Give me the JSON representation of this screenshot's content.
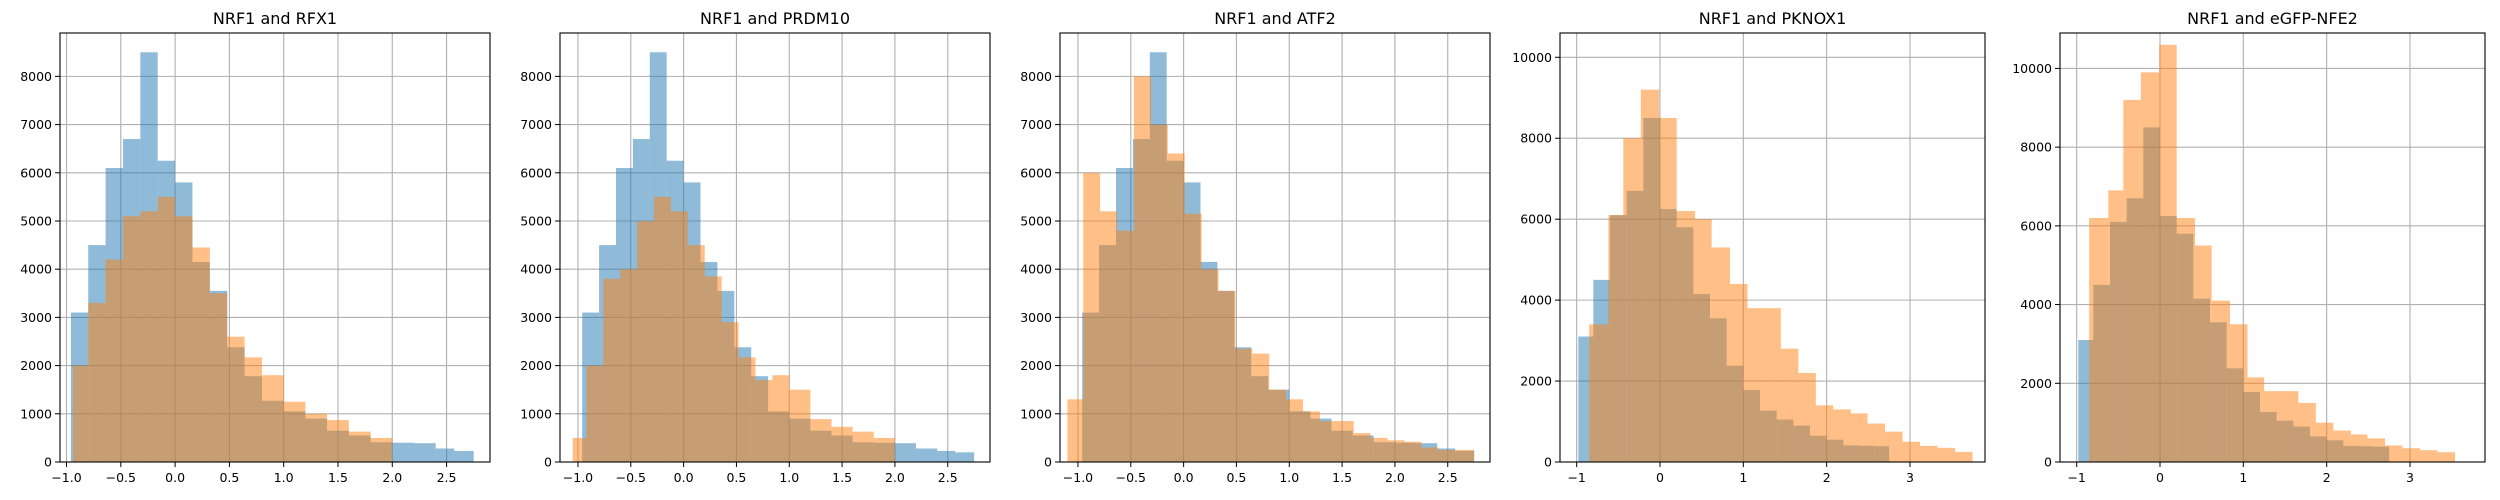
{
  "colors": {
    "series_a": "#1f77b4",
    "series_b": "#ff7f0e",
    "alpha": 0.5,
    "grid": "#b0b0b0"
  },
  "chart_data": [
    {
      "type": "bar",
      "title": "NRF1 and RFX1",
      "xlabel": "",
      "ylabel": "",
      "xlim": [
        -1.06,
        2.9
      ],
      "ylim": [
        0,
        8900
      ],
      "xticks": [
        -1.0,
        -0.5,
        0.0,
        0.5,
        1.0,
        1.5,
        2.0,
        2.5
      ],
      "xtick_labels": [
        "−1.0",
        "−0.5",
        "0.0",
        "0.5",
        "1.0",
        "1.5",
        "2.0",
        "2.5"
      ],
      "yticks": [
        0,
        1000,
        2000,
        3000,
        4000,
        5000,
        6000,
        7000,
        8000
      ],
      "grid": true,
      "series": [
        {
          "edges": [
            -0.96,
            -0.8,
            -0.64,
            -0.48,
            -0.32,
            -0.16,
            0.0,
            0.16,
            0.32,
            0.48,
            0.64,
            0.8,
            1.0,
            1.2,
            1.4,
            1.6,
            1.8,
            2.0,
            2.2,
            2.4,
            2.57,
            2.75
          ],
          "values": [
            3100,
            4500,
            6100,
            6700,
            8500,
            6250,
            5800,
            4150,
            3550,
            2380,
            1780,
            1270,
            1050,
            900,
            650,
            550,
            410,
            400,
            390,
            280,
            230
          ]
        },
        {
          "edges": [
            -0.94,
            -0.8,
            -0.64,
            -0.48,
            -0.32,
            -0.16,
            0.0,
            0.16,
            0.32,
            0.48,
            0.64,
            0.8,
            1.0,
            1.2,
            1.4,
            1.6,
            1.8,
            2.0
          ],
          "values": [
            2000,
            3300,
            4200,
            5100,
            5200,
            5500,
            5100,
            4450,
            3500,
            2600,
            2170,
            1800,
            1250,
            1000,
            870,
            630,
            500
          ]
        }
      ]
    },
    {
      "type": "bar",
      "title": "NRF1 and PRDM10",
      "xlabel": "",
      "ylabel": "",
      "xlim": [
        -1.17,
        2.9
      ],
      "ylim": [
        0,
        8900
      ],
      "xticks": [
        -1.0,
        -0.5,
        0.0,
        0.5,
        1.0,
        1.5,
        2.0,
        2.5
      ],
      "xtick_labels": [
        "−1.0",
        "−0.5",
        "0.0",
        "0.5",
        "1.0",
        "1.5",
        "2.0",
        "2.5"
      ],
      "yticks": [
        0,
        1000,
        2000,
        3000,
        4000,
        5000,
        6000,
        7000,
        8000
      ],
      "grid": true,
      "series": [
        {
          "edges": [
            -0.96,
            -0.8,
            -0.64,
            -0.48,
            -0.32,
            -0.16,
            0.0,
            0.16,
            0.32,
            0.48,
            0.64,
            0.8,
            1.0,
            1.2,
            1.4,
            1.6,
            1.8,
            2.0,
            2.2,
            2.4,
            2.57,
            2.75
          ],
          "values": [
            3100,
            4500,
            6100,
            6700,
            8500,
            6250,
            5800,
            4150,
            3550,
            2380,
            1780,
            1050,
            900,
            650,
            550,
            410,
            400,
            390,
            280,
            230,
            200
          ]
        },
        {
          "edges": [
            -1.05,
            -0.92,
            -0.76,
            -0.6,
            -0.44,
            -0.28,
            -0.12,
            0.04,
            0.2,
            0.36,
            0.52,
            0.68,
            0.84,
            1.0,
            1.2,
            1.4,
            1.6,
            1.8,
            2.0
          ],
          "values": [
            500,
            2000,
            3800,
            4000,
            5000,
            5500,
            5200,
            4500,
            3850,
            2900,
            2170,
            1700,
            1800,
            1500,
            890,
            730,
            630,
            500
          ]
        }
      ]
    },
    {
      "type": "bar",
      "title": "NRF1 and ATF2",
      "xlabel": "",
      "ylabel": "",
      "xlim": [
        -1.17,
        2.9
      ],
      "ylim": [
        0,
        8900
      ],
      "xticks": [
        -1.0,
        -0.5,
        0.0,
        0.5,
        1.0,
        1.5,
        2.0,
        2.5
      ],
      "xtick_labels": [
        "−1.0",
        "−0.5",
        "0.0",
        "0.5",
        "1.0",
        "1.5",
        "2.0",
        "2.5"
      ],
      "yticks": [
        0,
        1000,
        2000,
        3000,
        4000,
        5000,
        6000,
        7000,
        8000
      ],
      "grid": true,
      "series": [
        {
          "edges": [
            -0.96,
            -0.8,
            -0.64,
            -0.48,
            -0.32,
            -0.16,
            0.0,
            0.16,
            0.32,
            0.48,
            0.64,
            0.8,
            1.0,
            1.2,
            1.4,
            1.6,
            1.8,
            2.0,
            2.2,
            2.4,
            2.57,
            2.75
          ],
          "values": [
            3100,
            4500,
            6100,
            6700,
            8500,
            6250,
            5800,
            4150,
            3550,
            2380,
            1780,
            1500,
            1050,
            900,
            650,
            550,
            410,
            400,
            390,
            280,
            230
          ]
        },
        {
          "edges": [
            -1.1,
            -0.95,
            -0.79,
            -0.63,
            -0.47,
            -0.31,
            -0.15,
            0.01,
            0.17,
            0.33,
            0.49,
            0.65,
            0.81,
            0.97,
            1.13,
            1.29,
            1.45,
            1.61,
            1.77,
            1.93,
            2.09,
            2.25,
            2.41,
            2.57,
            2.75
          ],
          "values": [
            1300,
            6000,
            5200,
            4800,
            8000,
            7000,
            6400,
            5150,
            4000,
            3550,
            2350,
            2250,
            1500,
            1300,
            1050,
            850,
            850,
            600,
            500,
            450,
            420,
            300,
            250,
            250
          ]
        }
      ]
    },
    {
      "type": "bar",
      "title": "NRF1 and PKNOX1",
      "xlabel": "",
      "ylabel": "",
      "xlim": [
        -1.2,
        3.9
      ],
      "ylim": [
        0,
        10600
      ],
      "xticks": [
        -1,
        0,
        1,
        2,
        3
      ],
      "xtick_labels": [
        "−1",
        "0",
        "1",
        "2",
        "3"
      ],
      "yticks": [
        0,
        2000,
        4000,
        6000,
        8000,
        10000
      ],
      "grid": true,
      "series": [
        {
          "edges": [
            -0.98,
            -0.8,
            -0.6,
            -0.4,
            -0.2,
            0.0,
            0.2,
            0.4,
            0.6,
            0.8,
            1.0,
            1.2,
            1.4,
            1.6,
            1.8,
            2.0,
            2.2,
            2.4,
            2.57,
            2.75
          ],
          "values": [
            3100,
            4500,
            6100,
            6700,
            8500,
            6250,
            5800,
            4150,
            3550,
            2380,
            1780,
            1270,
            1050,
            900,
            650,
            550,
            410,
            400,
            390
          ]
        },
        {
          "edges": [
            -0.85,
            -0.62,
            -0.44,
            -0.23,
            -0.01,
            0.2,
            0.42,
            0.62,
            0.84,
            1.05,
            1.25,
            1.45,
            1.66,
            1.87,
            2.08,
            2.29,
            2.49,
            2.7,
            2.91,
            3.12,
            3.33,
            3.54,
            3.75
          ],
          "values": [
            3400,
            6100,
            8000,
            9200,
            8500,
            6200,
            6000,
            5300,
            4400,
            3800,
            3800,
            2800,
            2200,
            1400,
            1300,
            1200,
            950,
            750,
            500,
            400,
            350,
            250
          ]
        }
      ]
    },
    {
      "type": "bar",
      "title": "NRF1 and eGFP-NFE2",
      "xlabel": "",
      "ylabel": "",
      "xlim": [
        -1.2,
        3.9
      ],
      "ylim": [
        0,
        10900
      ],
      "xticks": [
        -1,
        0,
        1,
        2,
        3
      ],
      "xtick_labels": [
        "−1",
        "0",
        "1",
        "2",
        "3"
      ],
      "yticks": [
        0,
        2000,
        4000,
        6000,
        8000,
        10000
      ],
      "grid": true,
      "series": [
        {
          "edges": [
            -0.98,
            -0.8,
            -0.6,
            -0.4,
            -0.2,
            0.0,
            0.2,
            0.4,
            0.6,
            0.8,
            1.0,
            1.2,
            1.4,
            1.6,
            1.8,
            2.0,
            2.2,
            2.4,
            2.57,
            2.75
          ],
          "values": [
            3100,
            4500,
            6100,
            6700,
            8500,
            6250,
            5800,
            4150,
            3550,
            2380,
            1780,
            1270,
            1050,
            900,
            650,
            550,
            410,
            400,
            390
          ]
        },
        {
          "edges": [
            -0.85,
            -0.62,
            -0.44,
            -0.23,
            -0.01,
            0.2,
            0.42,
            0.62,
            0.84,
            1.05,
            1.25,
            1.45,
            1.66,
            1.87,
            2.08,
            2.29,
            2.49,
            2.7,
            2.91,
            3.12,
            3.33,
            3.54
          ],
          "values": [
            6200,
            6900,
            9200,
            9900,
            10600,
            6200,
            5500,
            4100,
            3500,
            2150,
            1800,
            1800,
            1500,
            1000,
            800,
            700,
            600,
            420,
            350,
            300,
            250
          ]
        }
      ]
    }
  ]
}
